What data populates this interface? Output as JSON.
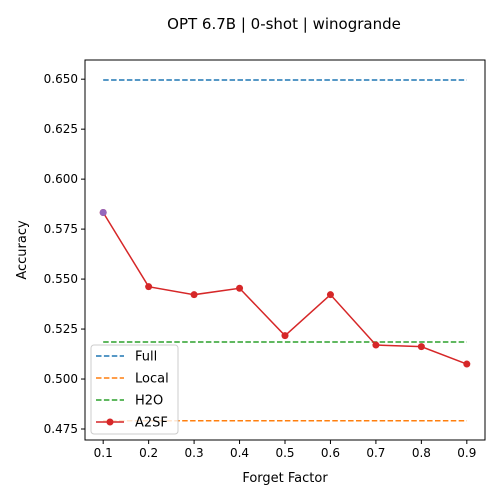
{
  "chart_data": {
    "type": "line",
    "title": "OPT 6.7B | 0-shot | winogrande",
    "xlabel": "Forget Factor",
    "ylabel": "Accuracy",
    "x": [
      0.1,
      0.2,
      0.3,
      0.4,
      0.5,
      0.6,
      0.7,
      0.8,
      0.9
    ],
    "xticks": [
      "0.1",
      "0.2",
      "0.3",
      "0.4",
      "0.5",
      "0.6",
      "0.7",
      "0.8",
      "0.9"
    ],
    "yticks": [
      "0.475",
      "0.500",
      "0.525",
      "0.550",
      "0.575",
      "0.600",
      "0.625",
      "0.650"
    ],
    "ylim": [
      0.4695,
      0.6596
    ],
    "xlim": [
      0.06,
      0.94
    ],
    "grid": false,
    "legend_position": "lower-left",
    "series": [
      {
        "name": "Full",
        "style": "dashed",
        "color": "#1f77b4",
        "values": [
          0.6496,
          0.6496,
          0.6496,
          0.6496,
          0.6496,
          0.6496,
          0.6496,
          0.6496,
          0.6496
        ]
      },
      {
        "name": "Local",
        "style": "dashed",
        "color": "#ff7f0e",
        "values": [
          0.4791,
          0.4791,
          0.4791,
          0.4791,
          0.4791,
          0.4791,
          0.4791,
          0.4791,
          0.4791
        ]
      },
      {
        "name": "H2O",
        "style": "dashed",
        "color": "#2ca02c",
        "values": [
          0.5185,
          0.5185,
          0.5185,
          0.5185,
          0.5185,
          0.5185,
          0.5185,
          0.5185,
          0.5185
        ]
      },
      {
        "name": "A2SF",
        "style": "solid-marker",
        "color": "#d62728",
        "values": [
          0.5833,
          0.5462,
          0.5422,
          0.5454,
          0.5217,
          0.5422,
          0.517,
          0.5162,
          0.5075
        ]
      }
    ],
    "highlight_point": {
      "x": 0.1,
      "y": 0.5833,
      "color": "#9467bd"
    }
  }
}
